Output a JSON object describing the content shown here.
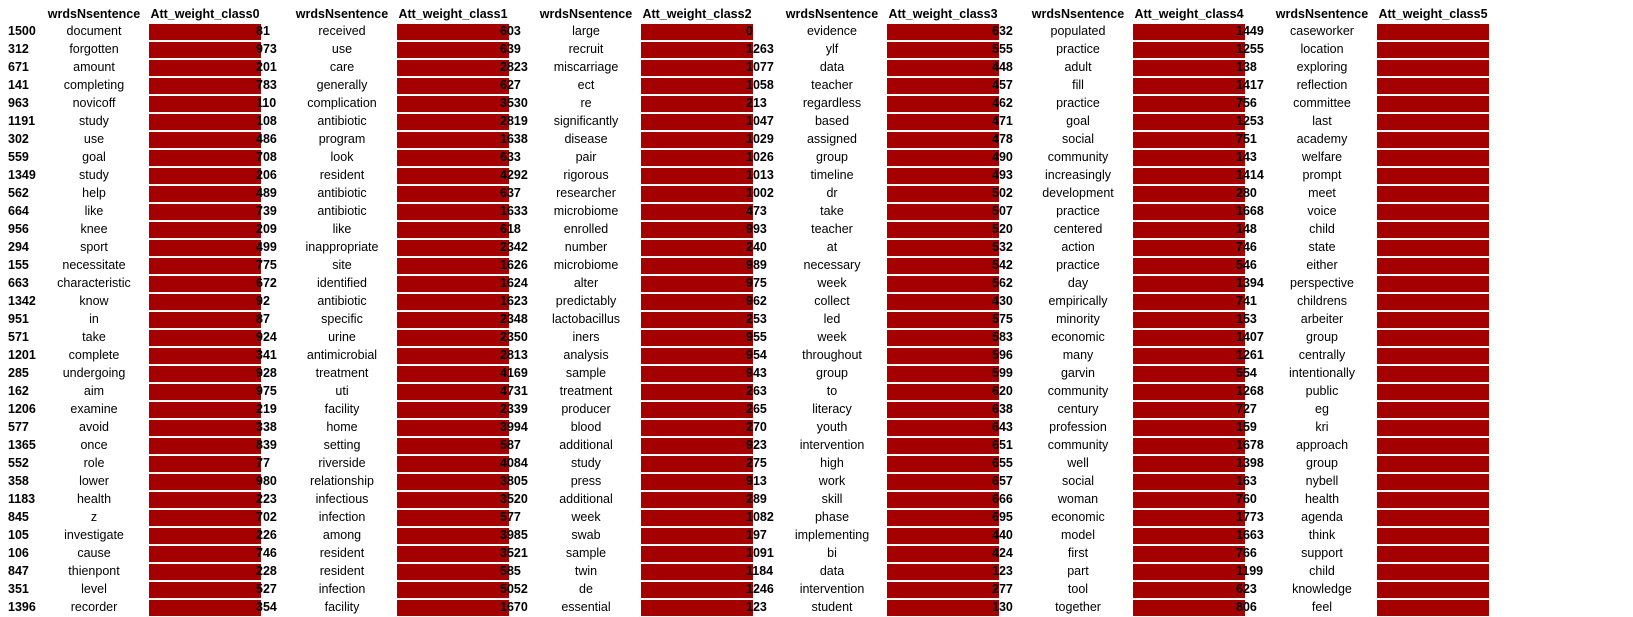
{
  "colors": {
    "bar": "#a50000"
  },
  "panels": [
    {
      "word_header": "wrdsNsentence",
      "att_header": "Att_weight_class0",
      "rows": [
        {
          "idx": "1500",
          "word": "document",
          "w": 1
        },
        {
          "idx": "312",
          "word": "forgotten",
          "w": 1
        },
        {
          "idx": "671",
          "word": "amount",
          "w": 1
        },
        {
          "idx": "141",
          "word": "completing",
          "w": 1
        },
        {
          "idx": "963",
          "word": "novicoff",
          "w": 1
        },
        {
          "idx": "1191",
          "word": "study",
          "w": 1
        },
        {
          "idx": "302",
          "word": "use",
          "w": 1
        },
        {
          "idx": "559",
          "word": "goal",
          "w": 1
        },
        {
          "idx": "1349",
          "word": "study",
          "w": 1
        },
        {
          "idx": "562",
          "word": "help",
          "w": 1
        },
        {
          "idx": "664",
          "word": "like",
          "w": 1
        },
        {
          "idx": "956",
          "word": "knee",
          "w": 1
        },
        {
          "idx": "294",
          "word": "sport",
          "w": 1
        },
        {
          "idx": "155",
          "word": "necessitate",
          "w": 1
        },
        {
          "idx": "663",
          "word": "characteristic",
          "w": 1
        },
        {
          "idx": "1342",
          "word": "know",
          "w": 1
        },
        {
          "idx": "951",
          "word": "in",
          "w": 1
        },
        {
          "idx": "571",
          "word": "take",
          "w": 1
        },
        {
          "idx": "1201",
          "word": "complete",
          "w": 1
        },
        {
          "idx": "285",
          "word": "undergoing",
          "w": 1
        },
        {
          "idx": "162",
          "word": "aim",
          "w": 1
        },
        {
          "idx": "1206",
          "word": "examine",
          "w": 1
        },
        {
          "idx": "577",
          "word": "avoid",
          "w": 1
        },
        {
          "idx": "1365",
          "word": "once",
          "w": 1
        },
        {
          "idx": "552",
          "word": "role",
          "w": 1
        },
        {
          "idx": "358",
          "word": "lower",
          "w": 1
        },
        {
          "idx": "1183",
          "word": "health",
          "w": 1
        },
        {
          "idx": "845",
          "word": "z",
          "w": 1
        },
        {
          "idx": "105",
          "word": "investigate",
          "w": 1
        },
        {
          "idx": "106",
          "word": "cause",
          "w": 1
        },
        {
          "idx": "847",
          "word": "thienpont",
          "w": 1
        },
        {
          "idx": "351",
          "word": "level",
          "w": 1
        },
        {
          "idx": "1396",
          "word": "recorder",
          "w": 1
        }
      ]
    },
    {
      "word_header": "wrdsNsentence",
      "att_header": "Att_weight_class1",
      "rows": [
        {
          "idx": "81",
          "word": "received",
          "w": 1
        },
        {
          "idx": "973",
          "word": "use",
          "w": 1
        },
        {
          "idx": "201",
          "word": "care",
          "w": 1
        },
        {
          "idx": "783",
          "word": "generally",
          "w": 1
        },
        {
          "idx": "110",
          "word": "complication",
          "w": 1
        },
        {
          "idx": "108",
          "word": "antibiotic",
          "w": 1
        },
        {
          "idx": "486",
          "word": "program",
          "w": 1
        },
        {
          "idx": "708",
          "word": "look",
          "w": 1
        },
        {
          "idx": "206",
          "word": "resident",
          "w": 1
        },
        {
          "idx": "489",
          "word": "antibiotic",
          "w": 1
        },
        {
          "idx": "739",
          "word": "antibiotic",
          "w": 1
        },
        {
          "idx": "209",
          "word": "like",
          "w": 1
        },
        {
          "idx": "499",
          "word": "inappropriate",
          "w": 1
        },
        {
          "idx": "775",
          "word": "site",
          "w": 1
        },
        {
          "idx": "672",
          "word": "identified",
          "w": 1
        },
        {
          "idx": "92",
          "word": "antibiotic",
          "w": 1
        },
        {
          "idx": "87",
          "word": "specific",
          "w": 1
        },
        {
          "idx": "924",
          "word": "urine",
          "w": 1
        },
        {
          "idx": "341",
          "word": "antimicrobial",
          "w": 1
        },
        {
          "idx": "928",
          "word": "treatment",
          "w": 1
        },
        {
          "idx": "975",
          "word": "uti",
          "w": 1
        },
        {
          "idx": "219",
          "word": "facility",
          "w": 1
        },
        {
          "idx": "338",
          "word": "home",
          "w": 1
        },
        {
          "idx": "839",
          "word": "setting",
          "w": 1
        },
        {
          "idx": "77",
          "word": "riverside",
          "w": 1
        },
        {
          "idx": "980",
          "word": "relationship",
          "w": 1
        },
        {
          "idx": "223",
          "word": "infectious",
          "w": 1
        },
        {
          "idx": "702",
          "word": "infection",
          "w": 1
        },
        {
          "idx": "226",
          "word": "among",
          "w": 1
        },
        {
          "idx": "746",
          "word": "resident",
          "w": 1
        },
        {
          "idx": "228",
          "word": "resident",
          "w": 1
        },
        {
          "idx": "527",
          "word": "infection",
          "w": 1
        },
        {
          "idx": "354",
          "word": "facility",
          "w": 1
        }
      ]
    },
    {
      "word_header": "wrdsNsentence",
      "att_header": "Att_weight_class2",
      "rows": [
        {
          "idx": "603",
          "word": "large",
          "w": 1
        },
        {
          "idx": "639",
          "word": "recruit",
          "w": 1
        },
        {
          "idx": "2823",
          "word": "miscarriage",
          "w": 1
        },
        {
          "idx": "627",
          "word": "ect",
          "w": 1
        },
        {
          "idx": "3530",
          "word": "re",
          "w": 1
        },
        {
          "idx": "2819",
          "word": "significantly",
          "w": 1
        },
        {
          "idx": "1638",
          "word": "disease",
          "w": 1
        },
        {
          "idx": "633",
          "word": "pair",
          "w": 1
        },
        {
          "idx": "4292",
          "word": "rigorous",
          "w": 1
        },
        {
          "idx": "637",
          "word": "researcher",
          "w": 1
        },
        {
          "idx": "1633",
          "word": "microbiome",
          "w": 1
        },
        {
          "idx": "618",
          "word": "enrolled",
          "w": 1
        },
        {
          "idx": "2342",
          "word": "number",
          "w": 1
        },
        {
          "idx": "1626",
          "word": "microbiome",
          "w": 1
        },
        {
          "idx": "1624",
          "word": "alter",
          "w": 1
        },
        {
          "idx": "1623",
          "word": "predictably",
          "w": 1
        },
        {
          "idx": "2348",
          "word": "lactobacillus",
          "w": 1
        },
        {
          "idx": "2350",
          "word": "iners",
          "w": 1
        },
        {
          "idx": "2813",
          "word": "analysis",
          "w": 1
        },
        {
          "idx": "4169",
          "word": "sample",
          "w": 1
        },
        {
          "idx": "4731",
          "word": "treatment",
          "w": 1
        },
        {
          "idx": "2339",
          "word": "producer",
          "w": 1
        },
        {
          "idx": "3994",
          "word": "blood",
          "w": 1
        },
        {
          "idx": "587",
          "word": "additional",
          "w": 1
        },
        {
          "idx": "4084",
          "word": "study",
          "w": 1
        },
        {
          "idx": "3805",
          "word": "press",
          "w": 1
        },
        {
          "idx": "3520",
          "word": "additional",
          "w": 1
        },
        {
          "idx": "577",
          "word": "week",
          "w": 1
        },
        {
          "idx": "3985",
          "word": "swab",
          "w": 1
        },
        {
          "idx": "3521",
          "word": "sample",
          "w": 1
        },
        {
          "idx": "585",
          "word": "twin",
          "w": 1
        },
        {
          "idx": "5052",
          "word": "de",
          "w": 1
        },
        {
          "idx": "1670",
          "word": "essential",
          "w": 1
        }
      ]
    },
    {
      "word_header": "wrdsNsentence",
      "att_header": "Att_weight_class3",
      "rows": [
        {
          "idx": "0",
          "word": "evidence",
          "w": 1
        },
        {
          "idx": "1263",
          "word": "ylf",
          "w": 1
        },
        {
          "idx": "1077",
          "word": "data",
          "w": 1
        },
        {
          "idx": "1058",
          "word": "teacher",
          "w": 1
        },
        {
          "idx": "213",
          "word": "regardless",
          "w": 1
        },
        {
          "idx": "1047",
          "word": "based",
          "w": 1
        },
        {
          "idx": "1029",
          "word": "assigned",
          "w": 1
        },
        {
          "idx": "1026",
          "word": "group",
          "w": 1
        },
        {
          "idx": "1013",
          "word": "timeline",
          "w": 1
        },
        {
          "idx": "1002",
          "word": "dr",
          "w": 1
        },
        {
          "idx": "473",
          "word": "take",
          "w": 1
        },
        {
          "idx": "993",
          "word": "teacher",
          "w": 1
        },
        {
          "idx": "240",
          "word": "at",
          "w": 1
        },
        {
          "idx": "989",
          "word": "necessary",
          "w": 1
        },
        {
          "idx": "975",
          "word": "week",
          "w": 1
        },
        {
          "idx": "962",
          "word": "collect",
          "w": 1
        },
        {
          "idx": "253",
          "word": "led",
          "w": 1
        },
        {
          "idx": "955",
          "word": "week",
          "w": 1
        },
        {
          "idx": "954",
          "word": "throughout",
          "w": 1
        },
        {
          "idx": "943",
          "word": "group",
          "w": 1
        },
        {
          "idx": "263",
          "word": "to",
          "w": 1
        },
        {
          "idx": "265",
          "word": "literacy",
          "w": 1
        },
        {
          "idx": "270",
          "word": "youth",
          "w": 1
        },
        {
          "idx": "923",
          "word": "intervention",
          "w": 1
        },
        {
          "idx": "275",
          "word": "high",
          "w": 1
        },
        {
          "idx": "913",
          "word": "work",
          "w": 1
        },
        {
          "idx": "289",
          "word": "skill",
          "w": 1
        },
        {
          "idx": "1082",
          "word": "phase",
          "w": 1
        },
        {
          "idx": "197",
          "word": "implementing",
          "w": 1
        },
        {
          "idx": "1091",
          "word": "bi",
          "w": 1
        },
        {
          "idx": "1184",
          "word": "data",
          "w": 1
        },
        {
          "idx": "1246",
          "word": "intervention",
          "w": 1
        },
        {
          "idx": "123",
          "word": "student",
          "w": 1
        }
      ]
    },
    {
      "word_header": "wrdsNsentence",
      "att_header": "Att_weight_class4",
      "rows": [
        {
          "idx": "632",
          "word": "populated",
          "w": 1
        },
        {
          "idx": "555",
          "word": "practice",
          "w": 1
        },
        {
          "idx": "448",
          "word": "adult",
          "w": 1
        },
        {
          "idx": "457",
          "word": "fill",
          "w": 1
        },
        {
          "idx": "462",
          "word": "practice",
          "w": 1
        },
        {
          "idx": "471",
          "word": "goal",
          "w": 1
        },
        {
          "idx": "478",
          "word": "social",
          "w": 1
        },
        {
          "idx": "490",
          "word": "community",
          "w": 1
        },
        {
          "idx": "493",
          "word": "increasingly",
          "w": 1
        },
        {
          "idx": "502",
          "word": "development",
          "w": 1
        },
        {
          "idx": "507",
          "word": "practice",
          "w": 1
        },
        {
          "idx": "520",
          "word": "centered",
          "w": 1
        },
        {
          "idx": "532",
          "word": "action",
          "w": 1
        },
        {
          "idx": "542",
          "word": "practice",
          "w": 1
        },
        {
          "idx": "562",
          "word": "day",
          "w": 1
        },
        {
          "idx": "430",
          "word": "empirically",
          "w": 1
        },
        {
          "idx": "575",
          "word": "minority",
          "w": 1
        },
        {
          "idx": "583",
          "word": "economic",
          "w": 1
        },
        {
          "idx": "596",
          "word": "many",
          "w": 1
        },
        {
          "idx": "599",
          "word": "garvin",
          "w": 1
        },
        {
          "idx": "620",
          "word": "community",
          "w": 1
        },
        {
          "idx": "638",
          "word": "century",
          "w": 1
        },
        {
          "idx": "643",
          "word": "profession",
          "w": 1
        },
        {
          "idx": "651",
          "word": "community",
          "w": 1
        },
        {
          "idx": "655",
          "word": "well",
          "w": 1
        },
        {
          "idx": "657",
          "word": "social",
          "w": 1
        },
        {
          "idx": "666",
          "word": "woman",
          "w": 1
        },
        {
          "idx": "695",
          "word": "economic",
          "w": 1
        },
        {
          "idx": "440",
          "word": "model",
          "w": 1
        },
        {
          "idx": "424",
          "word": "first",
          "w": 1
        },
        {
          "idx": "123",
          "word": "part",
          "w": 1
        },
        {
          "idx": "277",
          "word": "tool",
          "w": 1
        },
        {
          "idx": "130",
          "word": "together",
          "w": 1
        }
      ]
    },
    {
      "word_header": "wrdsNsentence",
      "att_header": "Att_weight_class5",
      "rows": [
        {
          "idx": "1449",
          "word": "caseworker",
          "w": 1
        },
        {
          "idx": "1255",
          "word": "location",
          "w": 1
        },
        {
          "idx": "138",
          "word": "exploring",
          "w": 1
        },
        {
          "idx": "1417",
          "word": "reflection",
          "w": 1
        },
        {
          "idx": "756",
          "word": "committee",
          "w": 1
        },
        {
          "idx": "1253",
          "word": "last",
          "w": 1
        },
        {
          "idx": "751",
          "word": "academy",
          "w": 1
        },
        {
          "idx": "143",
          "word": "welfare",
          "w": 1
        },
        {
          "idx": "1414",
          "word": "prompt",
          "w": 1
        },
        {
          "idx": "280",
          "word": "meet",
          "w": 1
        },
        {
          "idx": "1668",
          "word": "voice",
          "w": 1
        },
        {
          "idx": "148",
          "word": "child",
          "w": 1
        },
        {
          "idx": "746",
          "word": "state",
          "w": 1
        },
        {
          "idx": "546",
          "word": "either",
          "w": 1
        },
        {
          "idx": "1394",
          "word": "perspective",
          "w": 1
        },
        {
          "idx": "741",
          "word": "childrens",
          "w": 1
        },
        {
          "idx": "153",
          "word": "arbeiter",
          "w": 1
        },
        {
          "idx": "1407",
          "word": "group",
          "w": 1
        },
        {
          "idx": "1261",
          "word": "centrally",
          "w": 1
        },
        {
          "idx": "554",
          "word": "intentionally",
          "w": 1
        },
        {
          "idx": "1268",
          "word": "public",
          "w": 1
        },
        {
          "idx": "727",
          "word": "eg",
          "w": 1
        },
        {
          "idx": "159",
          "word": "kri",
          "w": 1
        },
        {
          "idx": "1678",
          "word": "approach",
          "w": 1
        },
        {
          "idx": "1398",
          "word": "group",
          "w": 1
        },
        {
          "idx": "163",
          "word": "nybell",
          "w": 1
        },
        {
          "idx": "760",
          "word": "health",
          "w": 1
        },
        {
          "idx": "1773",
          "word": "agenda",
          "w": 1
        },
        {
          "idx": "1663",
          "word": "think",
          "w": 1
        },
        {
          "idx": "766",
          "word": "support",
          "w": 1
        },
        {
          "idx": "1199",
          "word": "child",
          "w": 1
        },
        {
          "idx": "623",
          "word": "knowledge",
          "w": 1
        },
        {
          "idx": "806",
          "word": "feel",
          "w": 1
        }
      ]
    }
  ]
}
